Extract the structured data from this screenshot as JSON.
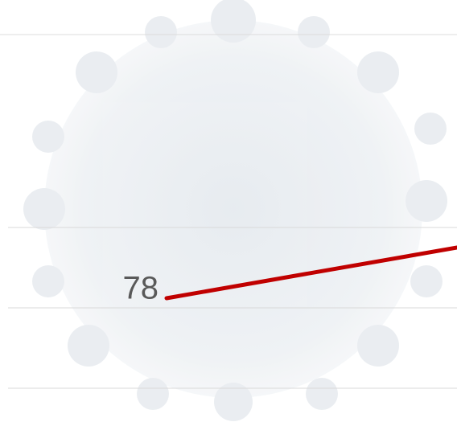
{
  "chart_data": {
    "type": "line",
    "categories": [
      null,
      null
    ],
    "series": [
      {
        "color": "#c00000",
        "values": [
          78,
          93.75
        ]
      }
    ],
    "ylim": [
      39.5,
      170.75
    ],
    "yticks": [
      50,
      75,
      100
    ],
    "grid": true
  }
}
